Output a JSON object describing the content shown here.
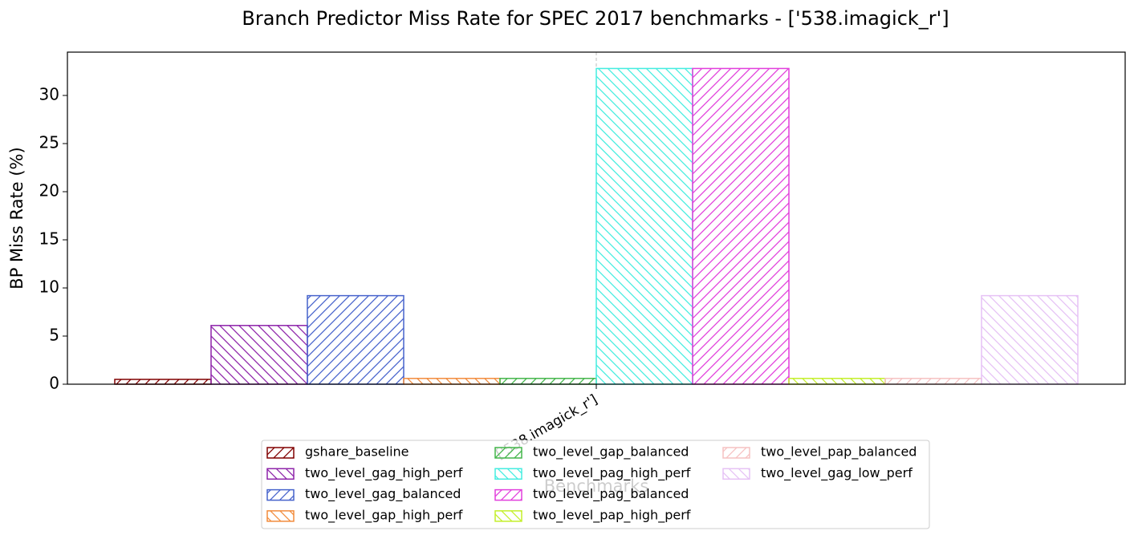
{
  "chart_data": {
    "type": "bar",
    "title": "Branch Predictor Miss Rate for SPEC 2017 benchmarks - ['538.imagick_r']",
    "xlabel": "Benchmarks",
    "ylabel": "BP Miss Rate (%)",
    "categories": [
      "['538.imagick_r']"
    ],
    "series": [
      {
        "name": "gshare_baseline",
        "color": "#800000",
        "hatch": "/",
        "values": [
          0.5
        ]
      },
      {
        "name": "two_level_gag_high_perf",
        "color": "#8e24aa",
        "hatch": "\\",
        "values": [
          6.1
        ]
      },
      {
        "name": "two_level_gag_balanced",
        "color": "#4763cc",
        "hatch": "/",
        "values": [
          9.2
        ]
      },
      {
        "name": "two_level_gap_high_perf",
        "color": "#f28c3c",
        "hatch": "\\",
        "values": [
          0.6
        ]
      },
      {
        "name": "two_level_gap_balanced",
        "color": "#43b54a",
        "hatch": "/",
        "values": [
          0.6
        ]
      },
      {
        "name": "two_level_pag_high_perf",
        "color": "#45ede0",
        "hatch": "\\",
        "values": [
          32.8
        ]
      },
      {
        "name": "two_level_pag_balanced",
        "color": "#e23fdc",
        "hatch": "/",
        "values": [
          32.8
        ]
      },
      {
        "name": "two_level_pap_high_perf",
        "color": "#c4ef2a",
        "hatch": "\\",
        "values": [
          0.6
        ]
      },
      {
        "name": "two_level_pap_balanced",
        "color": "#f6c2c2",
        "hatch": "/",
        "values": [
          0.6
        ]
      },
      {
        "name": "two_level_gag_low_perf",
        "color": "#e6c2f5",
        "hatch": "\\",
        "values": [
          9.2
        ]
      }
    ],
    "ylim": [
      0,
      34.5
    ],
    "yticks": [
      0,
      5,
      10,
      15,
      20,
      25,
      30
    ],
    "xgrid": true,
    "legend": "lower center"
  }
}
